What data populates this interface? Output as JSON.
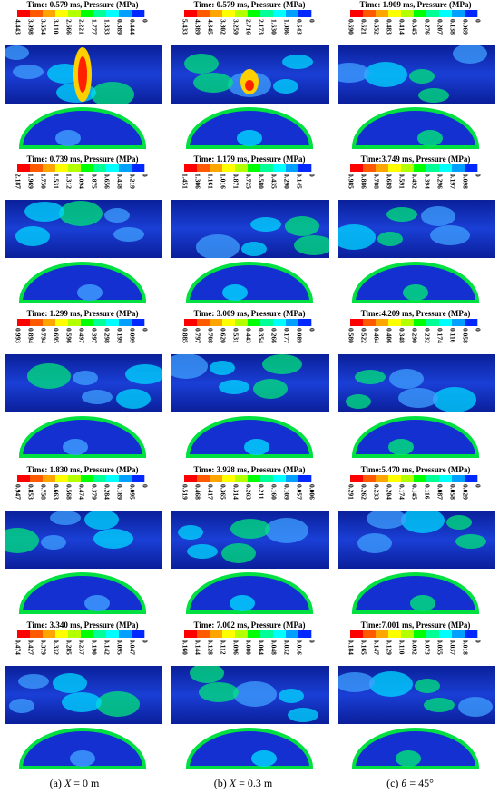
{
  "panels": [
    [
      {
        "title": "Time: 0.579 ms, Pressure (MPa)",
        "ticks": [
          "4.443",
          "3.998",
          "3.554",
          "3.110",
          "2.666",
          "2.221",
          "1.777",
          "1.333",
          "0.889",
          "0.444",
          "0"
        ]
      },
      {
        "title": "Time: 0.739 ms, Pressure (MPa)",
        "ticks": [
          "2.187",
          "1.969",
          "1.750",
          "1.531",
          "1.312",
          "1.094",
          "0.875",
          "0.656",
          "0.438",
          "0.219",
          "0"
        ]
      },
      {
        "title": "Time: 1.299 ms, Pressure (MPa)",
        "ticks": [
          "0.993",
          "0.894",
          "0.794",
          "0.695",
          "0.596",
          "0.497",
          "0.397",
          "0.298",
          "0.199",
          "0.099",
          "0"
        ]
      },
      {
        "title": "Time: 1.830 ms, Pressure (MPa)",
        "ticks": [
          "0.947",
          "0.853",
          "0.758",
          "0.663",
          "0.568",
          "0.474",
          "0.379",
          "0.284",
          "0.189",
          "0.095",
          "0"
        ]
      },
      {
        "title": "Time: 3.340 ms, Pressure (MPa)",
        "ticks": [
          "0.474",
          "0.427",
          "0.379",
          "0.332",
          "0.285",
          "0.237",
          "0.190",
          "0.142",
          "0.095",
          "0.047",
          "0"
        ]
      }
    ],
    [
      {
        "title": "Time: 0.579 ms, Pressure (MPa)",
        "ticks": [
          "5.433",
          "4.889",
          "4.345",
          "3.802",
          "3.259",
          "2.716",
          "2.173",
          "1.630",
          "1.086",
          "0.543",
          "0"
        ]
      },
      {
        "title": "Time: 1.179 ms, Pressure (MPa)",
        "ticks": [
          "1.451",
          "1.306",
          "1.161",
          "1.016",
          "0.871",
          "0.725",
          "0.580",
          "0.435",
          "0.290",
          "0.145",
          "0"
        ]
      },
      {
        "title": "Time: 3.009 ms, Pressure (MPa)",
        "ticks": [
          "0.885",
          "0.797",
          "0.708",
          "0.620",
          "0.531",
          "0.443",
          "0.354",
          "0.266",
          "0.177",
          "0.089",
          "0"
        ]
      },
      {
        "title": "Time: 3.928 ms, Pressure (MPa)",
        "ticks": [
          "0.519",
          "0.468",
          "0.417",
          "0.365",
          "0.314",
          "0.263",
          "0.211",
          "0.160",
          "0.109",
          "0.057",
          "0.006"
        ]
      },
      {
        "title": "Time: 7.002 ms, Pressure (MPa)",
        "ticks": [
          "0.160",
          "0.144",
          "0.128",
          "0.112",
          "0.096",
          "0.080",
          "0.064",
          "0.048",
          "0.032",
          "0.016",
          "0"
        ]
      }
    ],
    [
      {
        "title": "Time: 1.909 ms, Pressure (MPa)",
        "ticks": [
          "0.690",
          "0.621",
          "0.552",
          "0.483",
          "0.414",
          "0.345",
          "0.276",
          "0.207",
          "0.138",
          "0.069",
          "0"
        ]
      },
      {
        "title": "Time:3.749 ms, Pressure (MPa)",
        "ticks": [
          "0.985",
          "0.886",
          "0.788",
          "0.689",
          "0.591",
          "0.492",
          "0.394",
          "0.296",
          "0.197",
          "0.098",
          "0"
        ]
      },
      {
        "title": "Time:4.209 ms, Pressure (MPa)",
        "ticks": [
          "0.580",
          "0.522",
          "0.464",
          "0.406",
          "0.348",
          "0.290",
          "0.232",
          "0.174",
          "0.116",
          "0.058",
          "0"
        ]
      },
      {
        "title": "Time:5.470 ms, Pressure (MPa)",
        "ticks": [
          "0.291",
          "0.262",
          "0.233",
          "0.204",
          "0.174",
          "0.145",
          "0.116",
          "0.087",
          "0.058",
          "0.029",
          "0"
        ]
      },
      {
        "title": "Time:7.001 ms, Pressure (MPa)",
        "ticks": [
          "0.184",
          "0.165",
          "0.147",
          "0.129",
          "0.110",
          "0.092",
          "0.073",
          "0.055",
          "0.037",
          "0.018",
          "0"
        ]
      }
    ]
  ],
  "captions": [
    {
      "tag": "(a)",
      "symbol": "X",
      "value": "= 0 m"
    },
    {
      "tag": "(b)",
      "symbol": "X",
      "value": "= 0.3 m"
    },
    {
      "tag": "(c)",
      "symbol": "θ",
      "value": "= 45°"
    }
  ]
}
